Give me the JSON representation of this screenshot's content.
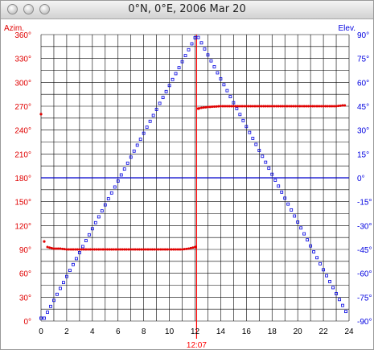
{
  "window": {
    "title": "0°N, 0°E, 2006 Mar 20"
  },
  "colors": {
    "azimuth": "#e00000",
    "elevation": "#0000e0",
    "noon": "#ff0000",
    "horizon": "#0000cc",
    "grid": "#000000"
  },
  "chart_data": {
    "type": "scatter",
    "x_ticks": [
      "0",
      "2",
      "4",
      "6",
      "8",
      "10",
      "12",
      "14",
      "16",
      "18",
      "20",
      "22",
      "24"
    ],
    "xlim": [
      0,
      24
    ],
    "left_axis": {
      "label": "Azim.",
      "ylim": [
        0,
        360
      ],
      "ticks": [
        "0°",
        "30°",
        "60°",
        "90°",
        "120°",
        "150°",
        "180°",
        "210°",
        "240°",
        "270°",
        "300°",
        "330°",
        "360°"
      ]
    },
    "right_axis": {
      "label": "Elev.",
      "ylim": [
        -90,
        90
      ],
      "ticks": [
        "-90°",
        "-75°",
        "-60°",
        "-45°",
        "-30°",
        "-15°",
        "0°",
        "15°",
        "30°",
        "45°",
        "60°",
        "75°",
        "90°"
      ]
    },
    "noon_marker": {
      "x": 12.12,
      "label": "12:07"
    },
    "horizon_line": {
      "elevation": 0
    },
    "grid": true,
    "series": [
      {
        "name": "Azim.",
        "axis": "left",
        "x": [
          0,
          0.25,
          0.5,
          0.75,
          1,
          1.5,
          2,
          3,
          4,
          5,
          6,
          7,
          8,
          9,
          10,
          11,
          11.5,
          11.75,
          12,
          12.25,
          12.5,
          13,
          14,
          15,
          16,
          17,
          18,
          19,
          20,
          21,
          22,
          23,
          23.5,
          23.75
        ],
        "values": [
          260,
          100,
          93,
          92,
          91,
          91,
          90,
          90,
          90,
          90,
          90,
          90,
          90,
          90,
          90,
          90,
          91,
          92,
          93,
          267,
          268,
          269,
          270,
          270,
          270,
          270,
          270,
          270,
          270,
          270,
          270,
          270,
          271,
          271
        ]
      },
      {
        "name": "Elev.",
        "axis": "right",
        "x": [
          0,
          0.25,
          0.5,
          0.75,
          1,
          1.25,
          1.5,
          1.75,
          2,
          2.25,
          2.5,
          2.75,
          3,
          3.25,
          3.5,
          3.75,
          4,
          4.25,
          4.5,
          4.75,
          5,
          5.25,
          5.5,
          5.75,
          6,
          6.25,
          6.5,
          6.75,
          7,
          7.25,
          7.5,
          7.75,
          8,
          8.25,
          8.5,
          8.75,
          9,
          9.25,
          9.5,
          9.75,
          10,
          10.25,
          10.5,
          10.75,
          11,
          11.25,
          11.5,
          11.75,
          12,
          12.25,
          12.5,
          12.75,
          13,
          13.25,
          13.5,
          13.75,
          14,
          14.25,
          14.5,
          14.75,
          15,
          15.25,
          15.5,
          15.75,
          16,
          16.25,
          16.5,
          16.75,
          17,
          17.25,
          17.5,
          17.75,
          18,
          18.25,
          18.5,
          18.75,
          19,
          19.25,
          19.5,
          19.75,
          20,
          20.25,
          20.5,
          20.75,
          21,
          21.25,
          21.5,
          21.75,
          22,
          22.25,
          22.5,
          22.75,
          23,
          23.25,
          23.5,
          23.75
        ],
        "values": [
          -88.2,
          -88.2,
          -84.5,
          -80.8,
          -77.0,
          -73.2,
          -69.5,
          -65.8,
          -62.0,
          -58.2,
          -54.5,
          -50.8,
          -47.0,
          -43.2,
          -39.5,
          -35.8,
          -32.0,
          -28.2,
          -24.5,
          -20.8,
          -17.0,
          -13.2,
          -9.5,
          -5.8,
          -2.0,
          1.8,
          5.5,
          9.2,
          13.0,
          16.8,
          20.5,
          24.2,
          28.0,
          31.8,
          35.5,
          39.2,
          43.0,
          46.8,
          50.5,
          54.2,
          58.0,
          61.8,
          65.5,
          69.2,
          73.0,
          76.8,
          80.5,
          84.2,
          88.0,
          88.2,
          84.8,
          81.0,
          77.2,
          73.5,
          69.8,
          66.0,
          62.2,
          58.5,
          54.8,
          51.0,
          47.2,
          43.5,
          39.8,
          36.0,
          32.2,
          28.5,
          24.8,
          21.0,
          17.2,
          13.5,
          9.8,
          6.0,
          2.2,
          -1.5,
          -5.2,
          -9.0,
          -12.8,
          -16.5,
          -20.2,
          -24.0,
          -27.8,
          -31.5,
          -35.2,
          -39.0,
          -42.8,
          -46.5,
          -50.2,
          -54.0,
          -57.8,
          -61.5,
          -65.2,
          -69.0,
          -72.8,
          -76.5,
          -80.2,
          -84.0
        ]
      }
    ]
  }
}
